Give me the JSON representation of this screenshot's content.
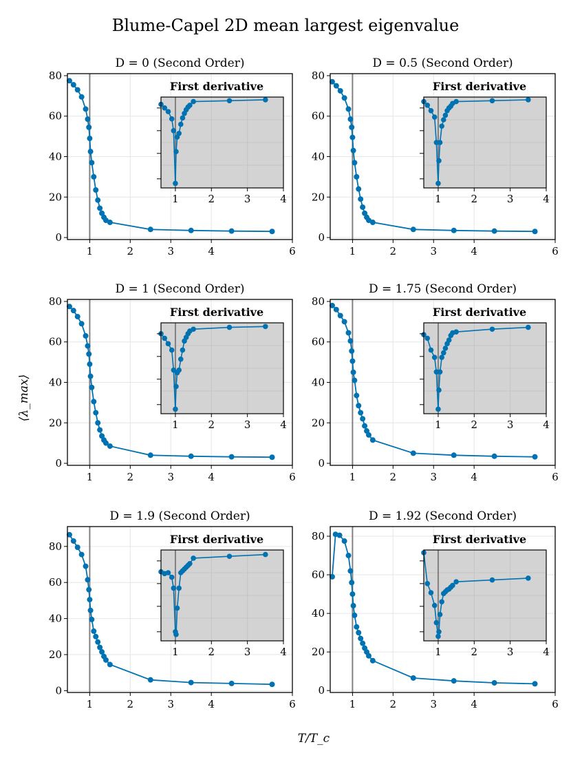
{
  "title": "Blume-Capel 2D mean largest eigenvalue",
  "xlabel": "T/T_c",
  "ylabel": "⟨λ_max⟩",
  "inset_title": "First derivative",
  "colors": {
    "series": "#0072b2",
    "inset_bg": "#d3d3d3",
    "vline": "#808080",
    "grid": "#e6e6e6"
  },
  "chart_data": [
    {
      "type": "line",
      "title": "D = 0 (Second Order)",
      "xlim": [
        0.45,
        6
      ],
      "ylim": [
        -1,
        81
      ],
      "xticks": [
        1,
        2,
        3,
        4,
        6
      ],
      "yticks": [
        0,
        20,
        40,
        60,
        80
      ],
      "vline_x": 1,
      "x": [
        0.5,
        0.6,
        0.7,
        0.8,
        0.9,
        0.95,
        0.98,
        1.0,
        1.02,
        1.05,
        1.1,
        1.15,
        1.2,
        1.25,
        1.3,
        1.35,
        1.4,
        1.5,
        2.5,
        3.5,
        4.5,
        5.5
      ],
      "y": [
        77.5,
        75.5,
        73,
        69.5,
        63.5,
        58.5,
        54.5,
        49,
        42.5,
        37,
        30,
        23.5,
        18.5,
        14.5,
        12,
        10,
        8.5,
        7.5,
        4,
        3.5,
        3.2,
        3
      ],
      "inset": {
        "xlim": [
          0.6,
          4
        ],
        "xticks": [
          1,
          2,
          3,
          4
        ],
        "ylim": [
          0,
          1
        ],
        "x": [
          0.6,
          0.7,
          0.8,
          0.9,
          0.95,
          1.0,
          1.02,
          1.05,
          1.1,
          1.15,
          1.2,
          1.25,
          1.3,
          1.35,
          1.4,
          1.5,
          2.5,
          3.5
        ],
        "y": [
          0.92,
          0.88,
          0.84,
          0.76,
          0.63,
          0.05,
          0.4,
          0.56,
          0.6,
          0.7,
          0.77,
          0.82,
          0.86,
          0.89,
          0.91,
          0.95,
          0.96,
          0.97
        ]
      }
    },
    {
      "type": "line",
      "title": "D = 0.5 (Second Order)",
      "xlim": [
        0.45,
        6
      ],
      "ylim": [
        -1,
        81
      ],
      "xticks": [
        1,
        2,
        3,
        4,
        6
      ],
      "yticks": [
        0,
        20,
        40,
        60,
        80
      ],
      "vline_x": 1,
      "x": [
        0.5,
        0.6,
        0.7,
        0.8,
        0.9,
        0.95,
        0.98,
        1.0,
        1.02,
        1.05,
        1.1,
        1.15,
        1.2,
        1.25,
        1.3,
        1.35,
        1.4,
        1.5,
        2.5,
        3.5,
        4.5,
        5.5
      ],
      "y": [
        77,
        75,
        72.5,
        69,
        63.5,
        58.5,
        54.5,
        49.5,
        43,
        37,
        30,
        24,
        19,
        15,
        12,
        10,
        8.5,
        7.5,
        4,
        3.5,
        3.2,
        3
      ],
      "inset": {
        "xlim": [
          0.6,
          4
        ],
        "xticks": [
          1,
          2,
          3,
          4
        ],
        "ylim": [
          0,
          1
        ],
        "x": [
          0.6,
          0.7,
          0.8,
          0.9,
          0.95,
          1.0,
          1.02,
          1.05,
          1.1,
          1.15,
          1.2,
          1.25,
          1.3,
          1.35,
          1.4,
          1.5,
          2.5,
          3.5
        ],
        "y": [
          0.95,
          0.91,
          0.85,
          0.78,
          0.5,
          0.05,
          0.3,
          0.5,
          0.68,
          0.75,
          0.8,
          0.85,
          0.88,
          0.9,
          0.93,
          0.95,
          0.96,
          0.97
        ]
      }
    },
    {
      "type": "line",
      "title": "D = 1 (Second Order)",
      "xlim": [
        0.45,
        6
      ],
      "ylim": [
        -1,
        81
      ],
      "xticks": [
        1,
        2,
        3,
        4,
        6
      ],
      "yticks": [
        0,
        20,
        40,
        60,
        80
      ],
      "vline_x": 1,
      "x": [
        0.5,
        0.6,
        0.7,
        0.8,
        0.9,
        0.95,
        0.98,
        1.0,
        1.02,
        1.05,
        1.1,
        1.15,
        1.2,
        1.25,
        1.3,
        1.35,
        1.4,
        1.5,
        2.5,
        3.5,
        4.5,
        5.5
      ],
      "y": [
        77.5,
        75.5,
        72.5,
        69,
        63,
        58,
        54,
        49,
        43,
        37.5,
        30.5,
        25,
        20,
        16.5,
        13.5,
        11.5,
        10,
        8.5,
        4,
        3.5,
        3.2,
        3
      ],
      "inset": {
        "xlim": [
          0.6,
          4
        ],
        "xticks": [
          1,
          2,
          3,
          4
        ],
        "ylim": [
          0,
          1
        ],
        "x": [
          0.6,
          0.7,
          0.8,
          0.9,
          0.95,
          1.0,
          1.02,
          1.05,
          1.1,
          1.15,
          1.2,
          1.25,
          1.3,
          1.35,
          1.4,
          1.5,
          2.5,
          3.5
        ],
        "y": [
          0.88,
          0.83,
          0.77,
          0.7,
          0.48,
          0.05,
          0.3,
          0.45,
          0.48,
          0.6,
          0.7,
          0.8,
          0.84,
          0.88,
          0.91,
          0.93,
          0.95,
          0.96
        ]
      }
    },
    {
      "type": "line",
      "title": "D = 1.75 (Second Order)",
      "xlim": [
        0.45,
        6
      ],
      "ylim": [
        -1,
        81
      ],
      "xticks": [
        1,
        2,
        3,
        4,
        6
      ],
      "yticks": [
        0,
        20,
        40,
        60,
        80
      ],
      "vline_x": 1,
      "x": [
        0.5,
        0.6,
        0.7,
        0.8,
        0.9,
        0.95,
        0.98,
        1.0,
        1.02,
        1.05,
        1.1,
        1.15,
        1.2,
        1.25,
        1.3,
        1.35,
        1.4,
        1.5,
        2.5,
        3.5,
        4.5,
        5.5
      ],
      "y": [
        78,
        76,
        73,
        70,
        64.5,
        60.5,
        55.5,
        50.5,
        45,
        41,
        33.5,
        28.5,
        25,
        22,
        18.5,
        16,
        14,
        11.5,
        5,
        4,
        3.5,
        3.2
      ],
      "inset": {
        "xlim": [
          0.6,
          4
        ],
        "xticks": [
          1,
          2,
          3,
          4
        ],
        "ylim": [
          0,
          1
        ],
        "x": [
          0.6,
          0.7,
          0.8,
          0.9,
          0.95,
          1.0,
          1.02,
          1.05,
          1.1,
          1.15,
          1.2,
          1.25,
          1.3,
          1.35,
          1.4,
          1.5,
          2.5,
          3.5
        ],
        "y": [
          0.87,
          0.83,
          0.7,
          0.62,
          0.46,
          0.05,
          0.26,
          0.46,
          0.62,
          0.67,
          0.72,
          0.77,
          0.81,
          0.86,
          0.89,
          0.9,
          0.93,
          0.95
        ]
      }
    },
    {
      "type": "line",
      "title": "D = 1.9 (Second Order)",
      "xlim": [
        0.45,
        6
      ],
      "ylim": [
        -1,
        91
      ],
      "xticks": [
        1,
        2,
        3,
        4,
        6
      ],
      "yticks": [
        0,
        20,
        40,
        60,
        80
      ],
      "vline_x": 1,
      "x": [
        0.5,
        0.6,
        0.7,
        0.8,
        0.9,
        0.95,
        0.98,
        1.0,
        1.02,
        1.05,
        1.1,
        1.15,
        1.2,
        1.25,
        1.3,
        1.35,
        1.4,
        1.5,
        2.5,
        3.5,
        4.5,
        5.5
      ],
      "y": [
        86.5,
        83,
        79.5,
        75.5,
        69,
        61.5,
        56,
        50.5,
        44.5,
        39.5,
        33,
        30,
        27,
        24,
        21.5,
        19,
        17,
        14.5,
        6,
        4.5,
        4,
        3.5
      ],
      "inset": {
        "xlim": [
          0.6,
          4
        ],
        "xticks": [
          1,
          2,
          3,
          4
        ],
        "ylim": [
          0,
          1
        ],
        "x": [
          0.6,
          0.7,
          0.8,
          0.9,
          0.95,
          1.0,
          1.02,
          1.05,
          1.1,
          1.15,
          1.2,
          1.25,
          1.3,
          1.35,
          1.4,
          1.5,
          2.5,
          3.5
        ],
        "y": [
          0.76,
          0.74,
          0.75,
          0.7,
          0.58,
          0.1,
          0.07,
          0.36,
          0.58,
          0.75,
          0.77,
          0.79,
          0.81,
          0.83,
          0.85,
          0.91,
          0.93,
          0.95
        ]
      }
    },
    {
      "type": "line",
      "title": "D = 1.92 (Second Order)",
      "xlim": [
        0.45,
        6
      ],
      "ylim": [
        -1,
        85
      ],
      "xticks": [
        1,
        2,
        3,
        4,
        6
      ],
      "yticks": [
        0,
        20,
        40,
        60,
        80
      ],
      "vline_x": 1,
      "x": [
        0.5,
        0.58,
        0.68,
        0.8,
        0.9,
        0.95,
        0.98,
        1.0,
        1.02,
        1.05,
        1.1,
        1.15,
        1.2,
        1.25,
        1.3,
        1.35,
        1.4,
        1.5,
        2.5,
        3.5,
        4.5,
        5.5
      ],
      "y": [
        59,
        81,
        80.5,
        77.5,
        70,
        62,
        56,
        50,
        44,
        39,
        33,
        30,
        27,
        24.5,
        22,
        20,
        18,
        15.5,
        6.5,
        5,
        4,
        3.5
      ],
      "inset": {
        "xlim": [
          0.6,
          4
        ],
        "xticks": [
          1,
          2,
          3,
          4
        ],
        "ylim": [
          0,
          1
        ],
        "x": [
          0.6,
          0.7,
          0.8,
          0.9,
          0.95,
          1.0,
          1.02,
          1.05,
          1.1,
          1.15,
          1.2,
          1.25,
          1.3,
          1.35,
          1.4,
          1.5,
          2.5,
          3.5
        ],
        "y": [
          0.97,
          0.63,
          0.53,
          0.39,
          0.2,
          0.05,
          0.1,
          0.29,
          0.43,
          0.52,
          0.54,
          0.56,
          0.57,
          0.59,
          0.61,
          0.65,
          0.67,
          0.69
        ]
      }
    }
  ]
}
